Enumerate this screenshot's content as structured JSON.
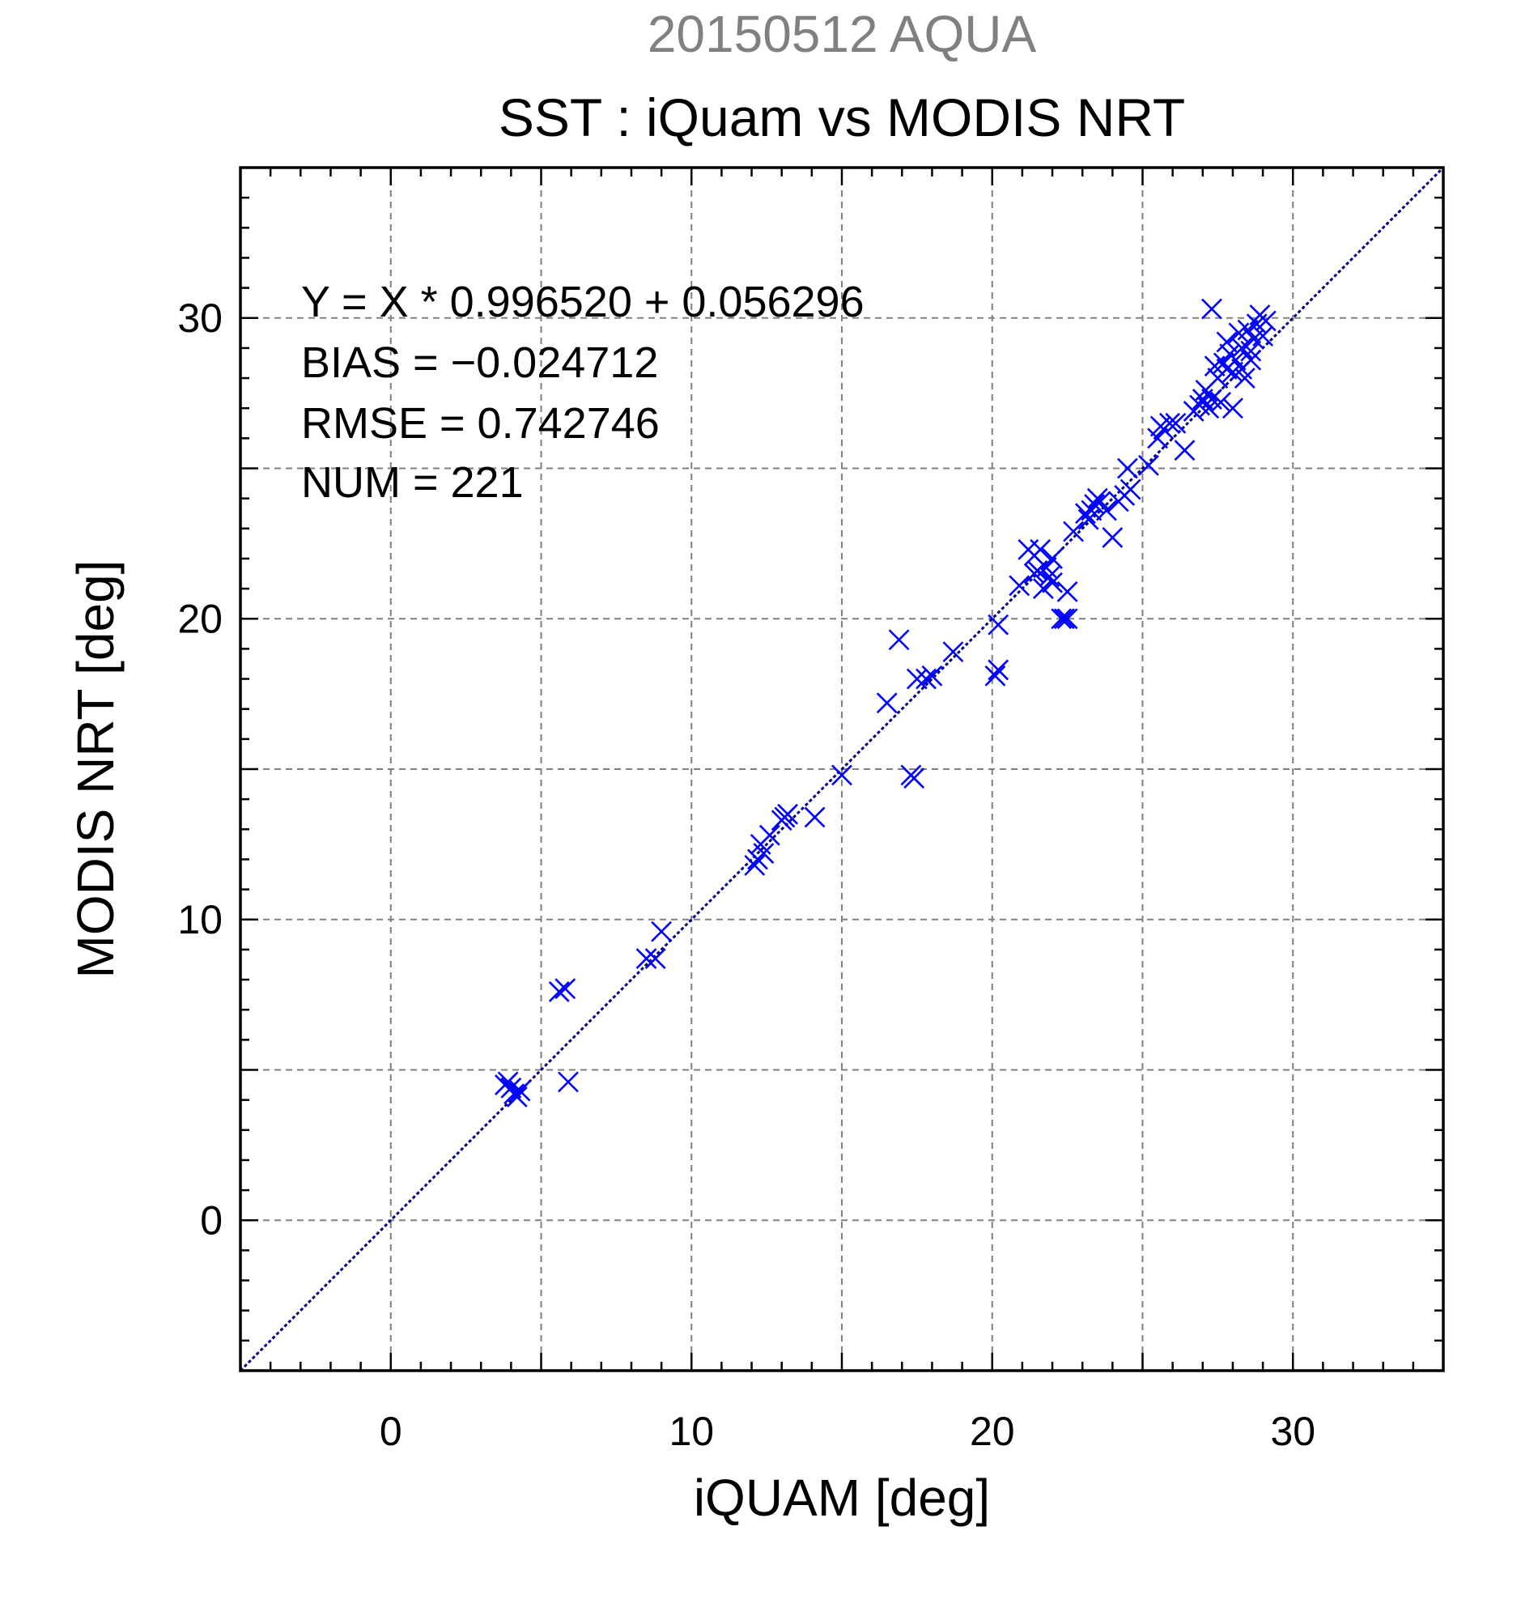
{
  "chart_data": {
    "type": "scatter",
    "title_top": "20150512 AQUA",
    "title": "SST : iQuam vs MODIS NRT",
    "xlabel": "iQUAM [deg]",
    "ylabel": "MODIS NRT [deg]",
    "xlim": [
      -5,
      35
    ],
    "ylim": [
      -5,
      35
    ],
    "x_ticks": [
      0,
      10,
      20,
      30
    ],
    "y_ticks": [
      0,
      10,
      20,
      30
    ],
    "grid": true,
    "reference_line": "y = x",
    "marker": "x",
    "marker_color": "#0000ff",
    "line_color": "#000080",
    "annotations": [
      "Y = X * 0.996520 + 0.056296",
      "BIAS = −0.024712",
      "RMSE = 0.742746",
      "NUM = 221"
    ],
    "series": [
      {
        "x": [
          3.8,
          3.9,
          4.0,
          4.1,
          4.2,
          4.3,
          5.6,
          5.8,
          5.9,
          8.5,
          8.8,
          9.0,
          12.1,
          12.2,
          12.3,
          12.4,
          12.6,
          13.0,
          13.1,
          13.2,
          14.1,
          15.0,
          16.5,
          16.9,
          17.3,
          17.4,
          17.5,
          17.8,
          18.0,
          18.7,
          20.1,
          20.2,
          20.2,
          20.9,
          21.2,
          21.4,
          21.4,
          21.5,
          21.6,
          21.7,
          21.8,
          21.9,
          22.0,
          22.0,
          22.3,
          22.4,
          22.5,
          22.5,
          22.7,
          23.1,
          23.2,
          23.3,
          23.4,
          23.5,
          23.6,
          23.8,
          24.0,
          24.2,
          24.4,
          24.5,
          24.6,
          25.2,
          25.5,
          25.6,
          25.7,
          25.9,
          26.1,
          26.4,
          26.7,
          26.9,
          27.0,
          27.1,
          27.2,
          27.3,
          27.3,
          27.4,
          27.5,
          27.6,
          27.7,
          27.8,
          27.8,
          27.9,
          28.0,
          28.0,
          28.1,
          28.2,
          28.3,
          28.3,
          28.4,
          28.5,
          28.6,
          28.6,
          28.7,
          28.8,
          28.9,
          29.0,
          29.1
        ],
        "y": [
          4.5,
          4.6,
          4.4,
          4.2,
          4.1,
          4.3,
          7.6,
          7.7,
          4.6,
          8.7,
          8.7,
          9.6,
          11.8,
          12.0,
          12.5,
          12.2,
          12.8,
          13.3,
          13.4,
          13.5,
          13.4,
          14.8,
          17.2,
          19.3,
          14.8,
          14.7,
          18.0,
          18.0,
          18.1,
          18.9,
          18.1,
          18.3,
          19.8,
          21.1,
          22.3,
          22.1,
          21.5,
          21.6,
          22.3,
          21.0,
          21.7,
          21.4,
          22.0,
          21.2,
          20.0,
          20.0,
          20.0,
          20.9,
          22.9,
          23.5,
          23.3,
          23.6,
          23.8,
          24.0,
          23.9,
          23.6,
          22.7,
          23.9,
          24.1,
          25.0,
          24.3,
          25.1,
          26.0,
          26.4,
          26.3,
          26.5,
          26.5,
          25.6,
          26.9,
          27.1,
          27.3,
          27.6,
          27.0,
          30.3,
          27.3,
          28.4,
          28.0,
          27.2,
          28.5,
          28.3,
          29.2,
          28.8,
          27.0,
          28.2,
          28.6,
          29.5,
          28.3,
          29.0,
          28.0,
          29.6,
          28.6,
          28.9,
          29.3,
          29.8,
          30.1,
          29.4,
          29.9
        ]
      }
    ]
  }
}
